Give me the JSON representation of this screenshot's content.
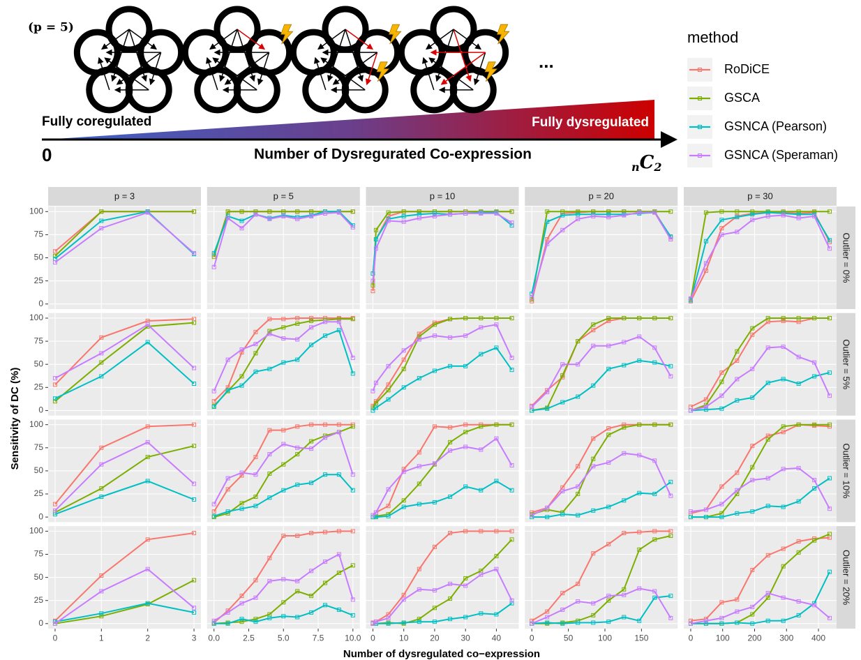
{
  "diagram": {
    "p_label": "(p = 5)",
    "left_label": "Fully coregulated",
    "right_label": "Fully dysregulated",
    "zero_label": "0",
    "axis_label": "Number of Dysregurated Co-expression",
    "end_label": {
      "pre": "n",
      "main": "C",
      "sub": "2"
    },
    "ellipsis": "..."
  },
  "chart_data": {
    "type": "line",
    "xlabel": "Number of dysregulated co−expression",
    "ylabel": "Sensitivity of DC (%)",
    "legend_title": "method",
    "series": [
      {
        "name": "RoDiCE",
        "color": "#F8766D"
      },
      {
        "name": "GSCA",
        "color": "#7CAE00"
      },
      {
        "name": "GSNCA (Pearson)",
        "color": "#00BFC4"
      },
      {
        "name": "GSNCA (Speraman)",
        "color": "#C77CFF"
      }
    ],
    "ylim": [
      -5.5,
      105.5
    ],
    "yticks": [
      0,
      25,
      50,
      75,
      100
    ],
    "grid": true,
    "columns": [
      {
        "label": "p = 3",
        "x": [
          0,
          1,
          2,
          3
        ],
        "xlim": [
          -0.15,
          3.15
        ],
        "xticks": [
          0,
          1,
          2,
          3
        ]
      },
      {
        "label": "p = 5",
        "x": [
          0,
          1,
          2,
          3,
          4,
          5,
          6,
          7,
          8,
          9,
          10
        ],
        "xlim": [
          -0.5,
          10.5
        ],
        "xticks": [
          {
            "value": 0,
            "label": "0.0"
          },
          {
            "value": 2.5,
            "label": "2.5"
          },
          {
            "value": 5,
            "label": "5.0"
          },
          {
            "value": 7.5,
            "label": "7.5"
          },
          {
            "value": 10,
            "label": "10.0"
          }
        ]
      },
      {
        "label": "p = 10",
        "x": [
          0,
          1,
          5,
          10,
          15,
          20,
          25,
          30,
          35,
          40,
          45
        ],
        "xlim": [
          -2.25,
          47.25
        ],
        "xticks": [
          0,
          10,
          20,
          30,
          40
        ]
      },
      {
        "label": "p = 20",
        "x": [
          0,
          21,
          42,
          63,
          84,
          105,
          126,
          147,
          168,
          190
        ],
        "xlim": [
          -9.5,
          199.5
        ],
        "xticks": [
          0,
          50,
          100,
          150
        ]
      },
      {
        "label": "p = 30",
        "x": [
          0,
          48,
          97,
          145,
          193,
          242,
          290,
          338,
          387,
          435
        ],
        "xlim": [
          -21.75,
          456.75
        ],
        "xticks": [
          0,
          100,
          200,
          300,
          400
        ]
      }
    ],
    "rows": [
      {
        "label": "Outlier = 0%",
        "panels": [
          [
            [
              57,
              100,
              100,
              100
            ],
            [
              52,
              100,
              100,
              100
            ],
            [
              49,
              90,
              100,
              54
            ],
            [
              45,
              82,
              99,
              55
            ]
          ],
          [
            [
              53,
              100,
              100,
              100,
              100,
              100,
              100,
              100,
              100,
              100,
              100
            ],
            [
              51,
              100,
              100,
              100,
              100,
              100,
              100,
              100,
              100,
              100,
              100
            ],
            [
              55,
              95,
              90,
              97,
              93,
              96,
              94,
              96,
              100,
              100,
              85
            ],
            [
              40,
              93,
              82,
              97,
              92,
              95,
              92,
              95,
              98,
              99,
              83
            ]
          ],
          [
            [
              14,
              70,
              95,
              100,
              100,
              100,
              100,
              100,
              100,
              100,
              100
            ],
            [
              20,
              80,
              99,
              100,
              100,
              100,
              100,
              100,
              100,
              100,
              100
            ],
            [
              33,
              70,
              92,
              95,
              97,
              98,
              97,
              98,
              99,
              99,
              85
            ],
            [
              25,
              60,
              90,
              89,
              93,
              95,
              97,
              98,
              98,
              98,
              88
            ]
          ],
          [
            [
              3,
              70,
              98,
              99,
              100,
              100,
              100,
              100,
              100,
              72
            ],
            [
              5,
              100,
              100,
              100,
              100,
              100,
              100,
              100,
              100,
              100
            ],
            [
              11,
              89,
              96,
              97,
              97,
              97,
              97,
              98,
              99,
              73
            ],
            [
              7,
              65,
              80,
              92,
              95,
              94,
              96,
              99,
              99,
              70
            ]
          ],
          [
            [
              3,
              36,
              82,
              95,
              98,
              99,
              99,
              98,
              99,
              67
            ],
            [
              5,
              99,
              100,
              100,
              100,
              100,
              100,
              100,
              100,
              100
            ],
            [
              4,
              68,
              91,
              94,
              97,
              99,
              98,
              97,
              97,
              69
            ],
            [
              6,
              44,
              75,
              78,
              91,
              95,
              96,
              93,
              95,
              60
            ]
          ]
        ]
      },
      {
        "label": "Outlier = 5%",
        "panels": [
          [
            [
              28,
              79,
              97,
              99
            ],
            [
              10,
              52,
              91,
              95
            ],
            [
              13,
              37,
              74,
              29
            ],
            [
              35,
              62,
              93,
              46
            ]
          ],
          [
            [
              10,
              25,
              63,
              85,
              99,
              99,
              100,
              100,
              100,
              100,
              100
            ],
            [
              5,
              21,
              37,
              62,
              86,
              90,
              94,
              97,
              98,
              99,
              99
            ],
            [
              4,
              22,
              27,
              42,
              45,
              52,
              55,
              71,
              81,
              87,
              40
            ],
            [
              21,
              55,
              66,
              72,
              83,
              78,
              77,
              90,
              96,
              96,
              57
            ]
          ],
          [
            [
              5,
              10,
              28,
              55,
              83,
              95,
              99,
              100,
              100,
              100,
              100
            ],
            [
              3,
              8,
              22,
              45,
              80,
              93,
              99,
              100,
              100,
              100,
              100
            ],
            [
              0,
              3,
              12,
              25,
              35,
              43,
              48,
              48,
              61,
              68,
              44
            ],
            [
              21,
              30,
              48,
              65,
              77,
              81,
              79,
              81,
              90,
              93,
              57
            ]
          ],
          [
            [
              5,
              22,
              36,
              75,
              87,
              97,
              100,
              100,
              100,
              100
            ],
            [
              0,
              3,
              38,
              75,
              93,
              100,
              100,
              100,
              100,
              100
            ],
            [
              0,
              2,
              9,
              15,
              27,
              45,
              49,
              54,
              52,
              48
            ],
            [
              4,
              20,
              50,
              50,
              70,
              70,
              74,
              80,
              68,
              37
            ]
          ],
          [
            [
              4,
              12,
              41,
              54,
              82,
              96,
              97,
              96,
              100,
              100
            ],
            [
              0,
              6,
              31,
              64,
              89,
              100,
              100,
              100,
              100,
              100
            ],
            [
              0,
              1,
              2,
              11,
              14,
              30,
              34,
              29,
              37,
              41
            ],
            [
              0,
              4,
              16,
              34,
              45,
              68,
              69,
              58,
              52,
              16
            ]
          ]
        ]
      },
      {
        "label": "Outlier = 10%",
        "panels": [
          [
            [
              14,
              75,
              98,
              100
            ],
            [
              5,
              31,
              65,
              77
            ],
            [
              3,
              22,
              39,
              19
            ],
            [
              7,
              57,
              81,
              36
            ]
          ],
          [
            [
              6,
              30,
              45,
              65,
              94,
              94,
              98,
              100,
              100,
              100,
              100
            ],
            [
              0,
              4,
              15,
              22,
              47,
              57,
              68,
              82,
              88,
              92,
              98
            ],
            [
              1,
              6,
              9,
              12,
              21,
              29,
              35,
              37,
              46,
              46,
              29
            ],
            [
              14,
              42,
              48,
              46,
              68,
              79,
              75,
              74,
              86,
              92,
              46
            ]
          ],
          [
            [
              2,
              5,
              12,
              52,
              70,
              98,
              97,
              100,
              100,
              100,
              100
            ],
            [
              0,
              1,
              3,
              18,
              36,
              57,
              81,
              92,
              98,
              100,
              100
            ],
            [
              0,
              0,
              1,
              11,
              14,
              16,
              22,
              33,
              29,
              39,
              29
            ],
            [
              2,
              5,
              30,
              49,
              55,
              58,
              72,
              76,
              73,
              85,
              56
            ]
          ],
          [
            [
              5,
              10,
              32,
              55,
              85,
              96,
              100,
              100,
              100,
              100
            ],
            [
              3,
              8,
              5,
              25,
              63,
              89,
              97,
              100,
              100,
              100
            ],
            [
              0,
              0,
              3,
              2,
              7,
              11,
              18,
              26,
              25,
              38
            ],
            [
              2,
              10,
              28,
              33,
              55,
              59,
              69,
              67,
              61,
              23
            ]
          ],
          [
            [
              4,
              8,
              33,
              48,
              77,
              88,
              92,
              100,
              99,
              98
            ],
            [
              0,
              0,
              4,
              25,
              54,
              84,
              98,
              100,
              100,
              100
            ],
            [
              0,
              0,
              0,
              4,
              6,
              12,
              11,
              17,
              31,
              42
            ],
            [
              6,
              8,
              14,
              29,
              40,
              42,
              52,
              53,
              40,
              9
            ]
          ]
        ]
      },
      {
        "label": "Outlier = 20%",
        "panels": [
          [
            [
              3,
              52,
              91,
              98
            ],
            [
              0,
              8,
              21,
              47
            ],
            [
              2,
              11,
              22,
              12
            ],
            [
              0,
              35,
              59,
              17
            ]
          ],
          [
            [
              1,
              14,
              30,
              47,
              71,
              95,
              95,
              98,
              99,
              100,
              100
            ],
            [
              0,
              1,
              2,
              5,
              10,
              23,
              35,
              30,
              44,
              55,
              63
            ],
            [
              0,
              0,
              5,
              2,
              6,
              8,
              7,
              12,
              20,
              15,
              9
            ],
            [
              3,
              12,
              22,
              28,
              46,
              48,
              46,
              57,
              67,
              75,
              26
            ]
          ],
          [
            [
              1,
              2,
              10,
              31,
              59,
              83,
              98,
              100,
              100,
              100,
              100
            ],
            [
              0,
              0,
              1,
              0,
              5,
              17,
              27,
              49,
              57,
              73,
              91
            ],
            [
              0,
              0,
              0,
              1,
              2,
              2,
              5,
              7,
              11,
              10,
              22
            ],
            [
              0,
              2,
              6,
              26,
              37,
              36,
              43,
              41,
              53,
              59,
              25
            ]
          ],
          [
            [
              3,
              13,
              33,
              43,
              76,
              86,
              98,
              99,
              100,
              100
            ],
            [
              0,
              0,
              1,
              3,
              9,
              25,
              37,
              80,
              91,
              95
            ],
            [
              0,
              1,
              0,
              1,
              1,
              2,
              7,
              3,
              28,
              30
            ],
            [
              0,
              7,
              15,
              24,
              22,
              30,
              31,
              38,
              35,
              6
            ]
          ],
          [
            [
              3,
              5,
              23,
              26,
              58,
              74,
              81,
              89,
              92,
              93
            ],
            [
              0,
              0,
              0,
              1,
              10,
              28,
              62,
              77,
              90,
              97
            ],
            [
              0,
              0,
              0,
              1,
              0,
              3,
              3,
              9,
              22,
              56
            ],
            [
              0,
              3,
              6,
              13,
              18,
              33,
              28,
              24,
              20,
              6
            ]
          ]
        ]
      }
    ]
  }
}
